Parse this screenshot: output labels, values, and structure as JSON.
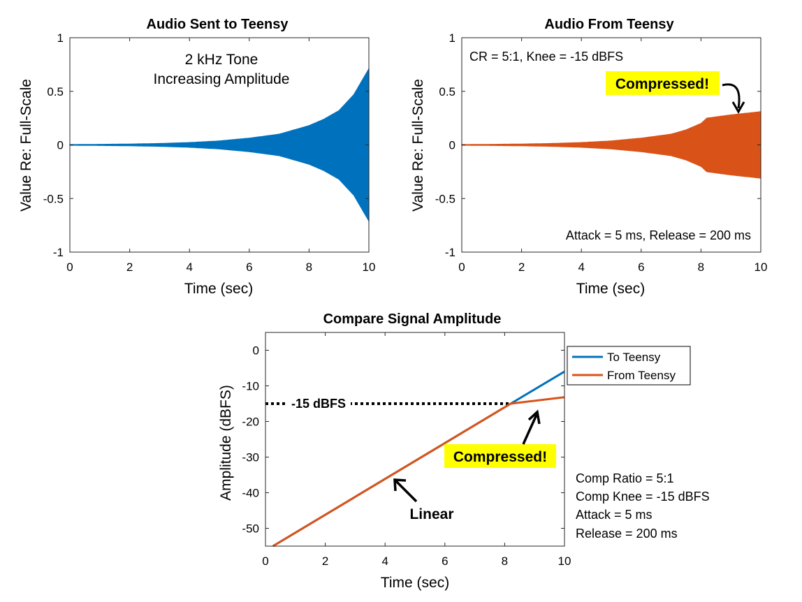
{
  "chart_data": [
    {
      "type": "area",
      "title": "Audio Sent to Teensy",
      "xlabel": "Time (sec)",
      "ylabel": "Value Re: Full-Scale",
      "xlim": [
        0,
        10
      ],
      "ylim": [
        -1,
        1
      ],
      "xticks": [
        "0",
        "2",
        "4",
        "6",
        "8",
        "10"
      ],
      "yticks": [
        "1",
        "0.5",
        "0",
        "-0.5",
        "-1"
      ],
      "grid": false,
      "color": "#0072BD",
      "series": [
        {
          "x": [
            0,
            1,
            2,
            3,
            4,
            5,
            6,
            7,
            8,
            8.5,
            9,
            9.5,
            10
          ],
          "envelope": [
            0.003,
            0.005,
            0.008,
            0.013,
            0.022,
            0.037,
            0.063,
            0.1,
            0.18,
            0.24,
            0.32,
            0.47,
            0.71
          ]
        }
      ],
      "annotations": [
        {
          "text": "2 kHz Tone",
          "x": 5.0,
          "y": 0.8
        },
        {
          "text": "Increasing Amplitude",
          "x": 5.0,
          "y": 0.62
        }
      ]
    },
    {
      "type": "area",
      "title": "Audio From Teensy",
      "xlabel": "Time (sec)",
      "ylabel": "Value Re: Full-Scale",
      "xlim": [
        0,
        10
      ],
      "ylim": [
        -1,
        1
      ],
      "xticks": [
        "0",
        "2",
        "4",
        "6",
        "8",
        "10"
      ],
      "yticks": [
        "1",
        "0.5",
        "0",
        "-0.5",
        "-1"
      ],
      "grid": false,
      "color": "#D95319",
      "series": [
        {
          "x": [
            0,
            1,
            2,
            3,
            4,
            5,
            6,
            7,
            7.5,
            8,
            8.2,
            9,
            10
          ],
          "envelope": [
            0.003,
            0.005,
            0.008,
            0.013,
            0.022,
            0.037,
            0.063,
            0.1,
            0.14,
            0.2,
            0.25,
            0.28,
            0.31
          ]
        }
      ],
      "annotations": [
        {
          "text": "CR = 5:1, Knee = -15 dBFS",
          "x": 0.3,
          "y": 0.83
        },
        {
          "text": "Compressed!",
          "x": 7.5,
          "y": 0.58,
          "highlight": "#ffff00"
        },
        {
          "text": "Attack = 5 ms, Release = 200 ms",
          "x": 9.8,
          "y": -0.83
        }
      ]
    },
    {
      "type": "line",
      "title": "Compare Signal Amplitude",
      "xlabel": "Time (sec)",
      "ylabel": "Amplitude (dBFS)",
      "xlim": [
        0,
        10
      ],
      "ylim": [
        -55,
        5
      ],
      "xticks": [
        "0",
        "2",
        "4",
        "6",
        "8",
        "10"
      ],
      "yticks": [
        "0",
        "-10",
        "-20",
        "-30",
        "-40",
        "-50"
      ],
      "grid": false,
      "legend": "outside-right-top",
      "series": [
        {
          "name": "To Teensy",
          "color": "#0072BD",
          "x": [
            0.25,
            8.2,
            10
          ],
          "y": [
            -55,
            -15,
            -6
          ]
        },
        {
          "name": "From Teensy",
          "color": "#D95319",
          "x": [
            0.25,
            8.2,
            10
          ],
          "y": [
            -55,
            -15,
            -13.2
          ]
        }
      ],
      "reference_line": {
        "label": "-15 dBFS",
        "y": -15,
        "x": [
          0,
          8.2
        ]
      },
      "annotations": [
        {
          "text": "Compressed!",
          "x": 7.6,
          "y": -30,
          "highlight": "#ffff00"
        },
        {
          "text": "Linear",
          "x": 4.9,
          "y": -45.5
        }
      ],
      "side_notes": [
        "Comp Ratio = 5:1",
        "Comp Knee = -15 dBFS",
        "Attack = 5 ms",
        "Release = 200 ms"
      ]
    }
  ]
}
